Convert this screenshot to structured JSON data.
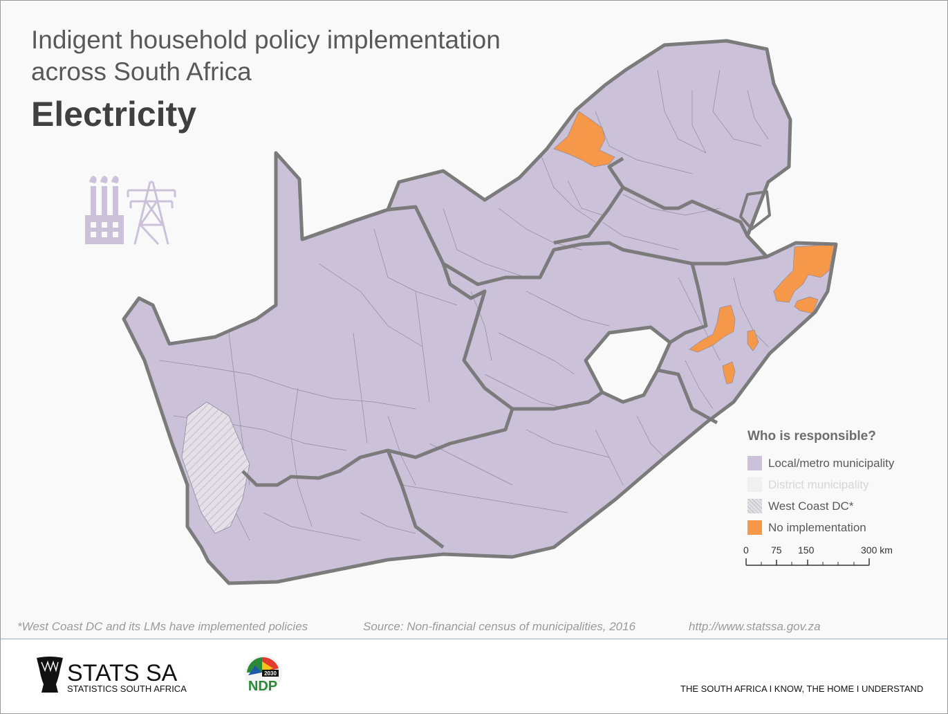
{
  "title": {
    "line1": "Indigent household policy implementation",
    "line2": "across South Africa",
    "subtitle": "Electricity"
  },
  "icons": {
    "factory": "factory-icon",
    "pylon": "power-pylon-icon"
  },
  "legend": {
    "title": "Who is responsible?",
    "items": [
      {
        "label": "Local/metro municipality",
        "color": "#cbc2da"
      },
      {
        "label": "District municipality",
        "color": "#f2f2f2"
      },
      {
        "label": "West Coast DC*",
        "color": "#dcdcdc"
      },
      {
        "label": "No implementation",
        "color": "#f5984a"
      }
    ]
  },
  "scale": {
    "ticks": [
      "0",
      "75",
      "150",
      "300 km"
    ]
  },
  "footer": {
    "note": "*West Coast DC and its LMs have implemented policies",
    "source": "Source: Non-financial census of municipalities, 2016",
    "url": "http://www.statssa.gov.za",
    "org_name": "STATS SA",
    "org_full": "STATISTICS SOUTH AFRICA",
    "ndp_logo": "NDP",
    "ndp_year": "2030",
    "tagline": "THE SOUTH AFRICA I KNOW, THE HOME I UNDERSTAND"
  },
  "colors": {
    "local": "#cbc2da",
    "province_border": "#7b7b7b",
    "none": "#f5984a",
    "text": "#595959"
  }
}
